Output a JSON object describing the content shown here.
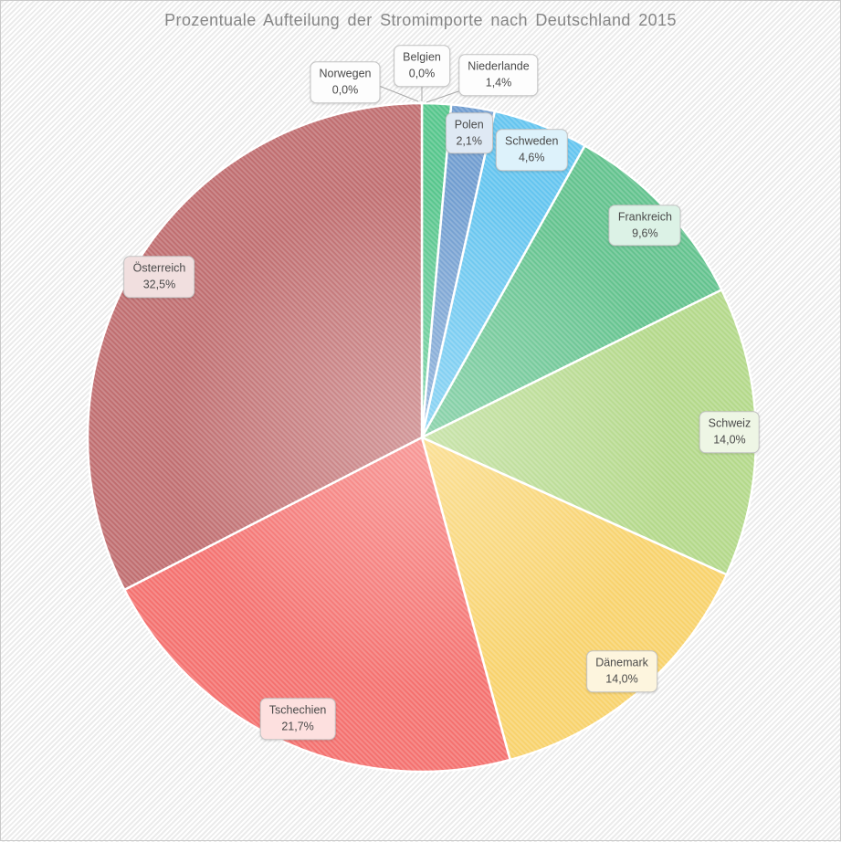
{
  "chart_data": {
    "type": "pie",
    "title": "Prozentuale Aufteilung der Stromimporte nach Deutschland 2015",
    "unit": "%",
    "decimal_separator": ",",
    "sort_order": "ascending-clockwise-from-top",
    "legend": "none",
    "slices": [
      {
        "label": "Norwegen",
        "value": 0.0,
        "value_label": "0,0%",
        "color": null,
        "label_position": "outside"
      },
      {
        "label": "Belgien",
        "value": 0.0,
        "value_label": "0,0%",
        "color": null,
        "label_position": "outside"
      },
      {
        "label": "Niederlande",
        "value": 1.4,
        "value_label": "1,4%",
        "color": "#55c58b",
        "label_position": "outside"
      },
      {
        "label": "Polen",
        "value": 2.1,
        "value_label": "2,1%",
        "color": "#6f9ccf",
        "label_position": "inside"
      },
      {
        "label": "Schweden",
        "value": 4.6,
        "value_label": "4,6%",
        "color": "#63c4ef",
        "label_position": "inside"
      },
      {
        "label": "Frankreich",
        "value": 9.6,
        "value_label": "9,6%",
        "color": "#62c28d",
        "label_position": "inside"
      },
      {
        "label": "Schweiz",
        "value": 14.0,
        "value_label": "14,0%",
        "color": "#b3d889",
        "label_position": "inside"
      },
      {
        "label": "Dänemark",
        "value": 14.0,
        "value_label": "14,0%",
        "color": "#f8d26b",
        "label_position": "inside"
      },
      {
        "label": "Tschechien",
        "value": 21.7,
        "value_label": "21,7%",
        "color": "#f4706e",
        "label_position": "inside"
      },
      {
        "label": "Österreich",
        "value": 32.5,
        "value_label": "32,5%",
        "color": "#bf6d6f",
        "label_position": "inside"
      }
    ]
  },
  "styles": {
    "title_color": "#868686",
    "label_text_color": "#4a4a4a",
    "label_border_color": "#c4c4c4",
    "outside_label_background": "#fdfdfd",
    "separator_color": "#ffffff",
    "background_stripe_color": "#ebebeb",
    "connector_color": "#a9a9a9"
  }
}
